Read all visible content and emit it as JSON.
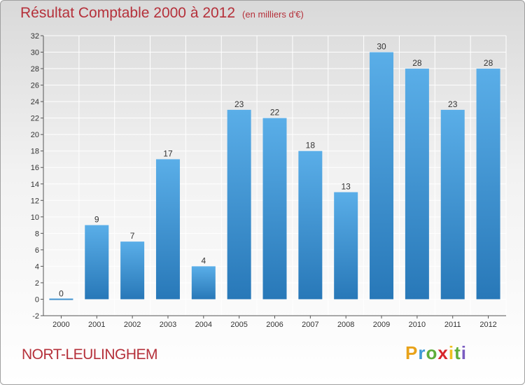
{
  "header": {
    "title": "Résultat Comptable 2000 à 2012",
    "subtitle": "(en milliers d'€)"
  },
  "footer": {
    "commune": "NORT-LEULINGHEM",
    "logo_letters": [
      "P",
      "r",
      "o",
      "x",
      "i",
      "t",
      "i"
    ]
  },
  "colors": {
    "bar_top": "#5aaee8",
    "bar_bottom": "#2878b8",
    "title": "#b5303a",
    "grid": "#ffffff"
  },
  "chart_data": {
    "type": "bar",
    "title": "Résultat Comptable 2000 à 2012",
    "subtitle": "(en milliers d'€)",
    "xlabel": "",
    "ylabel": "",
    "categories": [
      "2000",
      "2001",
      "2002",
      "2003",
      "2004",
      "2005",
      "2006",
      "2007",
      "2008",
      "2009",
      "2010",
      "2011",
      "2012"
    ],
    "values": [
      0,
      9,
      7,
      17,
      4,
      23,
      22,
      18,
      13,
      30,
      28,
      23,
      28
    ],
    "data_labels": [
      "0",
      "9",
      "7",
      "17",
      "4",
      "23",
      "22",
      "18",
      "13",
      "30",
      "28",
      "23",
      "28"
    ],
    "ylim": [
      -2,
      32
    ],
    "yticks": [
      -2,
      0,
      2,
      4,
      6,
      8,
      10,
      12,
      14,
      16,
      18,
      20,
      22,
      24,
      26,
      28,
      30,
      32
    ],
    "grid": true
  }
}
